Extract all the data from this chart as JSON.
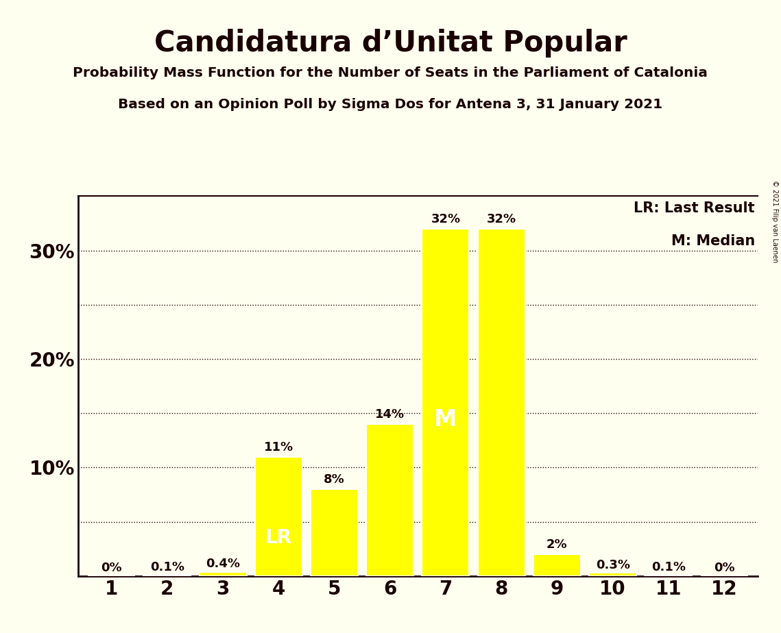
{
  "title": "Candidatura d’Unitat Popular",
  "subtitle1": "Probability Mass Function for the Number of Seats in the Parliament of Catalonia",
  "subtitle2": "Based on an Opinion Poll by Sigma Dos for Antena 3, 31 January 2021",
  "copyright": "© 2021 Filip van Laenen",
  "legend_lr": "LR: Last Result",
  "legend_m": "M: Median",
  "categories": [
    1,
    2,
    3,
    4,
    5,
    6,
    7,
    8,
    9,
    10,
    11,
    12
  ],
  "values": [
    0.0,
    0.1,
    0.4,
    11.0,
    8.0,
    14.0,
    32.0,
    32.0,
    2.0,
    0.3,
    0.1,
    0.0
  ],
  "bar_color": "#FFFF00",
  "bar_edge_color": "#FFFFFF",
  "background_color": "#FFFFF0",
  "text_color": "#1a0000",
  "label_texts": [
    "0%",
    "0.1%",
    "0.4%",
    "11%",
    "8%",
    "14%",
    "32%",
    "32%",
    "2%",
    "0.3%",
    "0.1%",
    "0%"
  ],
  "last_result_bar": 4,
  "median_bar": 7,
  "ylim": [
    0,
    35
  ],
  "ytick_vals": [
    10,
    20,
    30
  ],
  "ytick_labels": [
    "10%",
    "20%",
    "30%"
  ],
  "dotted_y_values": [
    5,
    10,
    15,
    20,
    25,
    30
  ]
}
